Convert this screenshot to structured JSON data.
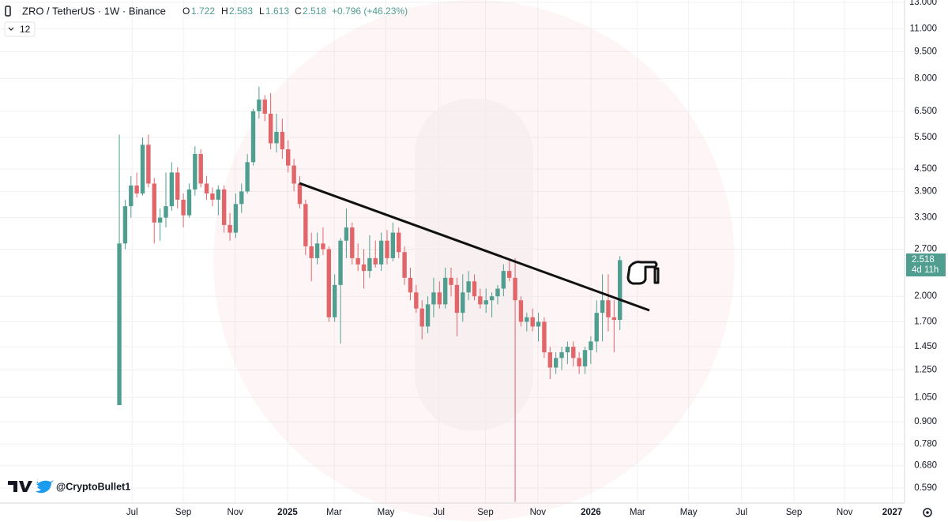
{
  "header": {
    "symbol": "ZRO / TetherUS · 1W · Binance",
    "ohlc_letters": [
      "O",
      "H",
      "L",
      "C"
    ],
    "change": "+0.796 (+46.23%)",
    "indicator_badge": "12"
  },
  "price_countdown": "4d 11h",
  "watermark": "@CryptoBullet1",
  "chart_data": {
    "type": "candlestick",
    "log_scale": true,
    "grid": true,
    "up_color": "#4f9e8f",
    "down_color": "#e0666a",
    "x": [
      0,
      1,
      2,
      3,
      4,
      5,
      6,
      7,
      8,
      9,
      10,
      11,
      12,
      13,
      14,
      15,
      16,
      17,
      18,
      19,
      20,
      21,
      22,
      23,
      24,
      25,
      26,
      27,
      28,
      29,
      30,
      31,
      32,
      33,
      34,
      35,
      36,
      37,
      38,
      39,
      40,
      41,
      42,
      43,
      44,
      45,
      46,
      47,
      48,
      49,
      50,
      51,
      52,
      53,
      54,
      55,
      56,
      57,
      58,
      59,
      60,
      61,
      62,
      63,
      64,
      65,
      66,
      67,
      68,
      69,
      70,
      71,
      72,
      73,
      74,
      75,
      76,
      77,
      78,
      79,
      80,
      81,
      82,
      83,
      84,
      85,
      86
    ],
    "open": [
      1.0,
      2.8,
      3.55,
      4.05,
      3.85,
      5.25,
      4.1,
      3.2,
      3.3,
      3.55,
      4.4,
      3.7,
      3.35,
      3.95,
      4.95,
      4.1,
      3.85,
      3.7,
      3.95,
      3.15,
      3.0,
      3.6,
      3.9,
      4.7,
      6.5,
      7.0,
      6.4,
      5.3,
      5.7,
      5.1,
      4.6,
      4.1,
      3.6,
      2.75,
      2.55,
      2.8,
      2.7,
      1.75,
      2.15,
      2.85,
      3.1,
      2.55,
      2.45,
      2.35,
      2.55,
      2.45,
      2.85,
      2.55,
      3.0,
      2.65,
      2.25,
      2.05,
      1.85,
      1.65,
      1.9,
      2.05,
      1.9,
      2.25,
      2.15,
      1.8,
      2.05,
      2.2,
      2.0,
      1.9,
      1.95,
      2.0,
      2.1,
      2.35,
      2.25,
      1.95,
      1.7,
      1.75,
      1.65,
      1.7,
      1.4,
      1.27,
      1.35,
      1.4,
      1.45,
      1.35,
      1.28,
      1.42,
      1.5,
      1.8,
      1.95,
      1.75,
      1.722
    ],
    "high": [
      5.6,
      3.7,
      4.3,
      4.4,
      5.5,
      5.6,
      4.25,
      3.5,
      4.4,
      4.7,
      4.55,
      3.85,
      4.1,
      5.2,
      5.1,
      4.3,
      4.0,
      4.05,
      4.05,
      3.4,
      3.85,
      4.1,
      4.95,
      6.6,
      7.6,
      7.2,
      7.3,
      6.4,
      6.2,
      5.4,
      4.8,
      4.3,
      3.7,
      3.0,
      3.0,
      3.1,
      2.75,
      2.3,
      2.9,
      3.5,
      3.2,
      2.8,
      2.7,
      2.95,
      2.85,
      3.0,
      3.05,
      3.2,
      3.1,
      2.75,
      2.4,
      2.15,
      1.95,
      2.0,
      2.25,
      2.2,
      2.4,
      2.4,
      2.25,
      2.3,
      2.35,
      2.3,
      2.1,
      2.1,
      2.05,
      2.15,
      2.45,
      2.5,
      2.55,
      2.0,
      1.8,
      1.85,
      1.8,
      1.75,
      1.45,
      1.4,
      1.45,
      1.5,
      1.5,
      1.4,
      1.45,
      1.55,
      1.95,
      2.3,
      2.3,
      1.95,
      2.583
    ],
    "low": [
      1.0,
      2.7,
      3.3,
      3.75,
      3.8,
      4.0,
      2.8,
      2.85,
      3.1,
      3.45,
      3.5,
      3.1,
      3.3,
      3.8,
      4.0,
      3.7,
      3.55,
      3.35,
      3.0,
      2.85,
      2.9,
      3.4,
      3.85,
      4.6,
      6.2,
      6.1,
      5.1,
      5.0,
      4.8,
      4.4,
      3.9,
      3.5,
      2.6,
      2.2,
      2.45,
      2.6,
      1.7,
      1.7,
      1.48,
      2.55,
      2.45,
      2.35,
      2.1,
      2.25,
      2.4,
      2.35,
      2.45,
      2.5,
      2.55,
      2.15,
      1.95,
      1.8,
      1.52,
      1.58,
      1.75,
      1.85,
      1.85,
      2.0,
      1.55,
      1.7,
      1.95,
      1.95,
      1.85,
      1.8,
      1.75,
      1.9,
      2.0,
      2.2,
      0.54,
      1.65,
      1.6,
      1.6,
      1.5,
      1.35,
      1.18,
      1.22,
      1.25,
      1.3,
      1.28,
      1.22,
      1.22,
      1.3,
      1.4,
      1.5,
      1.6,
      1.4,
      1.613
    ],
    "close": [
      2.8,
      3.55,
      4.05,
      3.85,
      5.25,
      4.1,
      3.2,
      3.3,
      3.55,
      4.4,
      3.7,
      3.35,
      3.95,
      4.95,
      4.1,
      3.85,
      3.7,
      3.95,
      3.15,
      3.0,
      3.6,
      3.9,
      4.7,
      6.5,
      7.0,
      6.4,
      5.3,
      5.7,
      5.1,
      4.6,
      4.1,
      3.6,
      2.75,
      2.55,
      2.8,
      2.7,
      1.75,
      2.15,
      2.85,
      3.1,
      2.55,
      2.45,
      2.35,
      2.55,
      2.45,
      2.85,
      2.55,
      3.0,
      2.65,
      2.25,
      2.05,
      1.85,
      1.65,
      1.9,
      2.05,
      1.9,
      2.25,
      2.15,
      1.8,
      2.05,
      2.2,
      2.0,
      1.9,
      1.95,
      2.0,
      2.1,
      2.35,
      2.25,
      1.95,
      1.7,
      1.75,
      1.65,
      1.7,
      1.4,
      1.27,
      1.35,
      1.4,
      1.45,
      1.35,
      1.28,
      1.42,
      1.5,
      1.8,
      1.95,
      1.75,
      1.722,
      2.518
    ],
    "xlim": [
      -20.5,
      134.9
    ],
    "xticks": [
      {
        "value": 2.2,
        "label": "Jul"
      },
      {
        "value": 11.0,
        "label": "Sep"
      },
      {
        "value": 19.9,
        "label": "Nov"
      },
      {
        "value": 28.9,
        "label": "2025"
      },
      {
        "value": 36.9,
        "label": "Mar"
      },
      {
        "value": 45.8,
        "label": "May"
      },
      {
        "value": 54.9,
        "label": "Jul"
      },
      {
        "value": 62.9,
        "label": "Sep"
      },
      {
        "value": 71.9,
        "label": "Nov"
      },
      {
        "value": 81.0,
        "label": "2026"
      },
      {
        "value": 89.0,
        "label": "Mar"
      },
      {
        "value": 97.8,
        "label": "May"
      },
      {
        "value": 106.9,
        "label": "Jul"
      },
      {
        "value": 115.9,
        "label": "Sep"
      },
      {
        "value": 124.6,
        "label": "Nov"
      },
      {
        "value": 132.8,
        "label": "2027"
      }
    ],
    "ylim": [
      0.536,
      13.2
    ],
    "yticks": [
      {
        "value": 13,
        "label": "13.000"
      },
      {
        "value": 11,
        "label": "11.000"
      },
      {
        "value": 9.5,
        "label": "9.500"
      },
      {
        "value": 8,
        "label": "8.000"
      },
      {
        "value": 6.5,
        "label": "6.500"
      },
      {
        "value": 5.5,
        "label": "5.500"
      },
      {
        "value": 4.5,
        "label": "4.500"
      },
      {
        "value": 3.9,
        "label": "3.900"
      },
      {
        "value": 3.3,
        "label": "3.300"
      },
      {
        "value": 2.7,
        "label": "2.700"
      },
      {
        "value": 2,
        "label": "2.000"
      },
      {
        "value": 1.7,
        "label": "1.700"
      },
      {
        "value": 1.45,
        "label": "1.450"
      },
      {
        "value": 1.25,
        "label": "1.250"
      },
      {
        "value": 1.05,
        "label": "1.050"
      },
      {
        "value": 0.9,
        "label": "0.900"
      },
      {
        "value": 0.78,
        "label": "0.780"
      },
      {
        "value": 0.68,
        "label": "0.680"
      },
      {
        "value": 0.59,
        "label": "0.590"
      }
    ]
  }
}
